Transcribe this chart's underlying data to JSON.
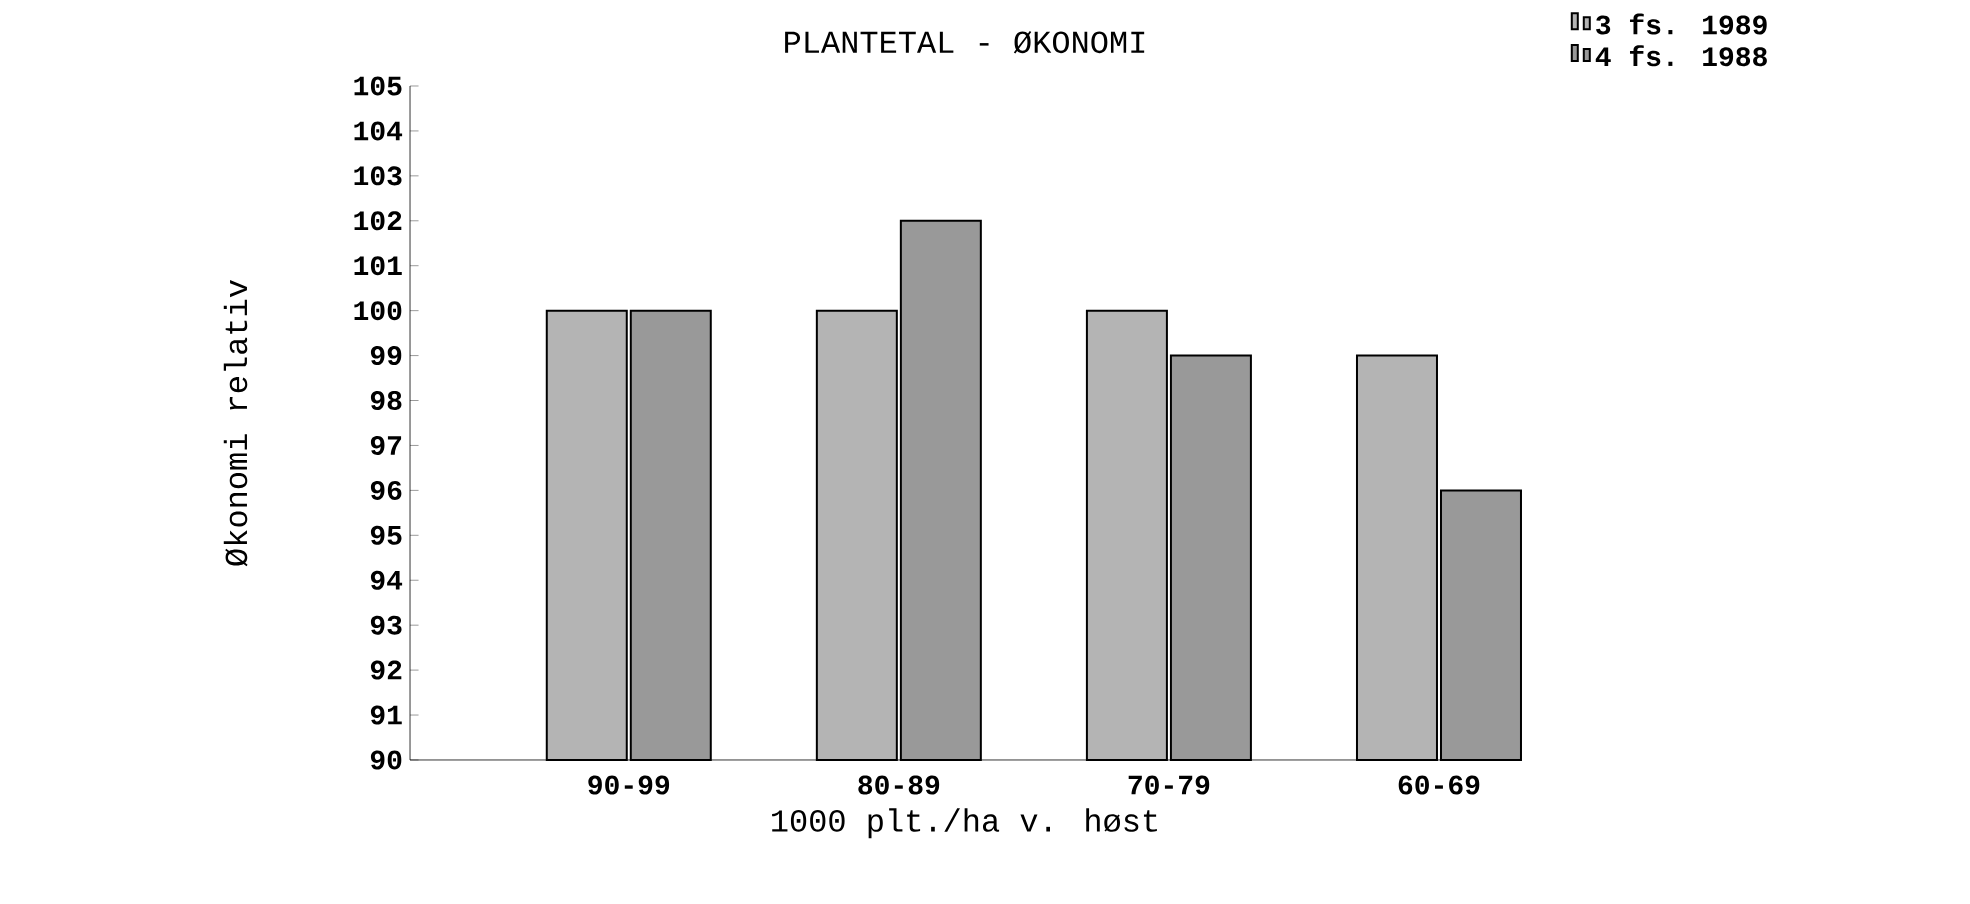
{
  "chart_data": {
    "type": "bar",
    "title": "PLANTETAL - ØKONOMI",
    "xlabel": "1000 plt./ha v. høst",
    "ylabel": "Økonomi relativ",
    "categories": [
      "90-99",
      "80-89",
      "70-79",
      "60-69"
    ],
    "series": [
      {
        "name": "3 fs. 1989",
        "color": "#b4b4b4",
        "values": [
          100,
          100,
          100,
          99
        ]
      },
      {
        "name": "4 fs. 1988",
        "color": "#999999",
        "values": [
          100,
          102,
          99,
          96
        ]
      }
    ],
    "ylim": [
      90,
      105
    ],
    "yticks": [
      90,
      91,
      92,
      93,
      94,
      95,
      96,
      97,
      98,
      99,
      100,
      101,
      102,
      103,
      104,
      105
    ],
    "legend": "top right",
    "grid": false
  }
}
